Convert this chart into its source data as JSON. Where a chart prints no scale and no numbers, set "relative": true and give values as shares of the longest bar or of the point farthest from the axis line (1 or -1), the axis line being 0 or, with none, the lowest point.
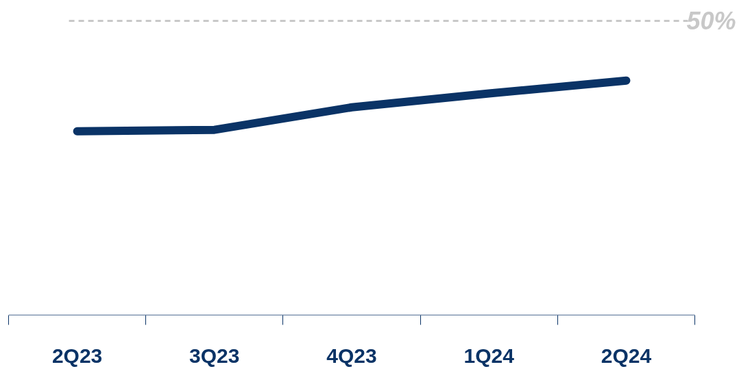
{
  "chart_data": {
    "type": "line",
    "relative": true,
    "categories": [
      "2Q23",
      "3Q23",
      "4Q23",
      "1Q24",
      "2Q24"
    ],
    "series": [
      {
        "color": "#0a3366",
        "values": [
          0.784,
          0.79,
          0.886,
          0.945,
          1.0
        ]
      }
    ],
    "ref_lines": [
      {
        "axis": "y",
        "value": 1.254,
        "color": "#c8c8c8",
        "line_style": "dashed"
      }
    ],
    "annotations": [
      "50%"
    ],
    "grid": false,
    "marker": "none",
    "line_style": "solid"
  }
}
